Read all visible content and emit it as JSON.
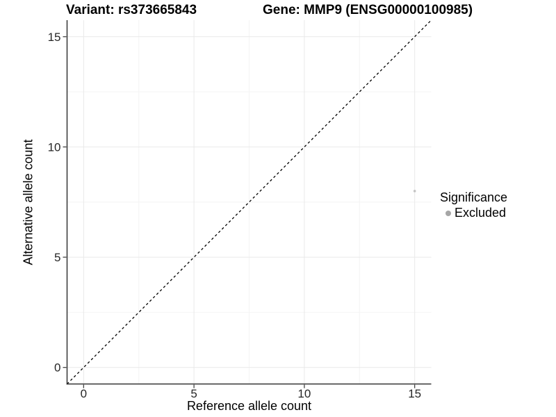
{
  "chart_data": {
    "type": "scatter",
    "title_left": "Variant: rs373665843",
    "title_right": "Gene: MMP9 (ENSG00000100985)",
    "xlabel": "Reference allele count",
    "ylabel": "Alternative allele count",
    "xlim": [
      -0.75,
      15.75
    ],
    "ylim": [
      -0.75,
      15.75
    ],
    "xticks": [
      0,
      5,
      10,
      15
    ],
    "yticks": [
      0,
      5,
      10,
      15
    ],
    "minor_ticks_x": [
      2.5,
      7.5,
      12.5
    ],
    "minor_ticks_y": [
      2.5,
      7.5,
      12.5
    ],
    "grid": "major+minor",
    "identity_line": {
      "style": "dashed",
      "color": "#000000",
      "from": [
        -0.75,
        -0.75
      ],
      "to": [
        15.75,
        15.75
      ]
    },
    "series": [
      {
        "name": "Excluded",
        "color": "#c3c3c3",
        "point_radius": 1.8,
        "points": [
          {
            "x": 15,
            "y": 8
          }
        ]
      }
    ],
    "legend": {
      "title": "Significance",
      "position": "right",
      "entries": [
        {
          "label": "Excluded",
          "marker_color": "#a6a6a6"
        }
      ]
    },
    "colors": {
      "grid_major": "#e9e9e9",
      "grid_minor": "#f4f4f4",
      "axis_line": "#333333",
      "tick_mark": "#333333",
      "tick_label": "#262626",
      "background": "#ffffff"
    }
  }
}
